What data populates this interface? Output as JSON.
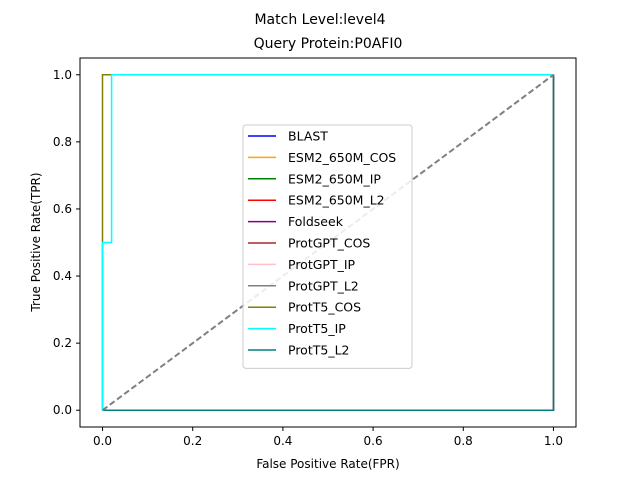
{
  "chart_data": {
    "type": "line",
    "suptitle": "Match Level:level4",
    "title": "Query Protein:P0AFI0",
    "xlabel": "False Positive Rate(FPR)",
    "ylabel": "True Positive Rate(TPR)",
    "xlim": [
      -0.05,
      1.05
    ],
    "ylim": [
      -0.05,
      1.05
    ],
    "xticks": [
      0.0,
      0.2,
      0.4,
      0.6,
      0.8,
      1.0
    ],
    "yticks": [
      0.0,
      0.2,
      0.4,
      0.6,
      0.8,
      1.0
    ],
    "xtick_labels": [
      "0.0",
      "0.2",
      "0.4",
      "0.6",
      "0.8",
      "1.0"
    ],
    "ytick_labels": [
      "0.0",
      "0.2",
      "0.4",
      "0.6",
      "0.8",
      "1.0"
    ],
    "grid": false,
    "legend_position": "center",
    "diagonal": {
      "x": [
        0,
        1
      ],
      "y": [
        0,
        1
      ],
      "color": "#808080",
      "style": "dashed"
    },
    "series": [
      {
        "name": "BLAST",
        "color": "#0000ff",
        "x": [
          0,
          1,
          1
        ],
        "y": [
          0,
          0,
          1
        ]
      },
      {
        "name": "ESM2_650M_COS",
        "color": "#ffa500",
        "x": [
          0,
          1,
          1
        ],
        "y": [
          0,
          0,
          1
        ]
      },
      {
        "name": "ESM2_650M_IP",
        "color": "#008000",
        "x": [
          0,
          1,
          1
        ],
        "y": [
          0,
          0,
          1
        ]
      },
      {
        "name": "ESM2_650M_L2",
        "color": "#ff0000",
        "x": [
          0,
          1,
          1
        ],
        "y": [
          0,
          0,
          1
        ]
      },
      {
        "name": "Foldseek",
        "color": "#800080",
        "x": [
          0,
          1,
          1
        ],
        "y": [
          0,
          0,
          1
        ]
      },
      {
        "name": "ProtGPT_COS",
        "color": "#a52a2a",
        "x": [
          0,
          1,
          1
        ],
        "y": [
          0,
          0,
          1
        ]
      },
      {
        "name": "ProtGPT_IP",
        "color": "#ffc0cb",
        "x": [
          0,
          1,
          1
        ],
        "y": [
          0,
          0,
          1
        ]
      },
      {
        "name": "ProtGPT_L2",
        "color": "#808080",
        "x": [
          0,
          1,
          1
        ],
        "y": [
          0,
          0,
          1
        ]
      },
      {
        "name": "ProtT5_COS",
        "color": "#808000",
        "x": [
          0,
          0,
          1
        ],
        "y": [
          0,
          1,
          1
        ]
      },
      {
        "name": "ProtT5_IP",
        "color": "#00ffff",
        "x": [
          0,
          0,
          0.02,
          0.02,
          1
        ],
        "y": [
          0,
          0.5,
          0.5,
          1,
          1
        ]
      },
      {
        "name": "ProtT5_L2",
        "color": "#008080",
        "x": [
          0,
          1,
          1
        ],
        "y": [
          0,
          0,
          1
        ]
      }
    ]
  }
}
